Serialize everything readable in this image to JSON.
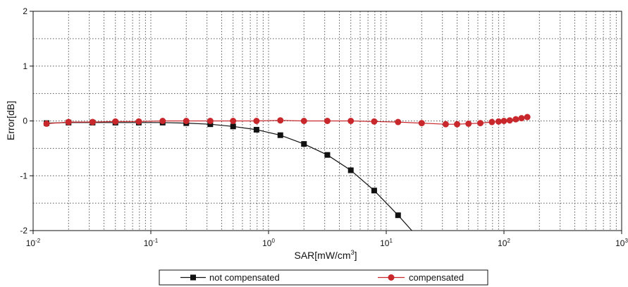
{
  "chart_data": {
    "type": "line",
    "xlabel": "SAR[mW/cm",
    "xlabel_sup": "3",
    "xlabel_end": "]",
    "ylabel": "Error[dB]",
    "xscale": "log",
    "xlim": [
      0.01,
      1000
    ],
    "ylim": [
      -2,
      2
    ],
    "grid": true,
    "legend": "bottom",
    "x_ticks": [
      {
        "base": "10",
        "exp": "-2"
      },
      {
        "base": "10",
        "exp": "-1"
      },
      {
        "base": "10",
        "exp": "0"
      },
      {
        "base": "10",
        "exp": "1"
      },
      {
        "base": "10",
        "exp": "2"
      },
      {
        "base": "10",
        "exp": "3"
      }
    ],
    "y_ticks": [
      "2",
      "1",
      "0",
      "-1",
      "-2"
    ],
    "series": [
      {
        "name": "not compensated",
        "color": "#111111",
        "marker": "square",
        "x": [
          0.013,
          0.02,
          0.032,
          0.05,
          0.079,
          0.126,
          0.2,
          0.32,
          0.5,
          0.79,
          1.26,
          2.0,
          3.16,
          5.0,
          7.9,
          12.6
        ],
        "y": [
          -0.04,
          -0.03,
          -0.03,
          -0.03,
          -0.03,
          -0.03,
          -0.04,
          -0.06,
          -0.1,
          -0.16,
          -0.26,
          -0.42,
          -0.62,
          -0.9,
          -1.27,
          -1.72
        ],
        "curve_end": [
          16.5,
          -2.0
        ]
      },
      {
        "name": "compensated",
        "color": "#c8282c",
        "marker": "circle",
        "x": [
          0.013,
          0.02,
          0.032,
          0.05,
          0.079,
          0.126,
          0.2,
          0.32,
          0.5,
          0.79,
          1.26,
          2.0,
          3.16,
          5.0,
          7.9,
          12.6,
          20,
          32,
          40,
          50,
          63,
          79,
          90,
          100,
          112,
          126,
          141,
          158
        ],
        "y": [
          -0.05,
          -0.02,
          -0.02,
          -0.01,
          -0.01,
          0.0,
          0.0,
          0.0,
          0.0,
          0.0,
          0.01,
          0.0,
          0.0,
          0.0,
          -0.01,
          -0.02,
          -0.04,
          -0.06,
          -0.06,
          -0.05,
          -0.04,
          -0.02,
          -0.01,
          0.0,
          0.01,
          0.03,
          0.05,
          0.07
        ]
      }
    ]
  }
}
